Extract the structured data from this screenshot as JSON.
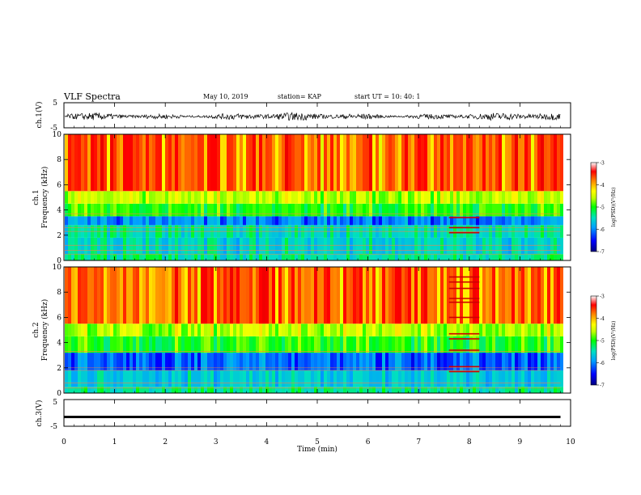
{
  "header": {
    "title": "VLF Spectra",
    "date": "May 10, 2019",
    "station": "station= KAP",
    "start": "start  UT =   10: 40: 1"
  },
  "colors": {
    "spectrogram_scale": [
      "#000080",
      "#0000ff",
      "#00a0ff",
      "#00e0c0",
      "#00ff00",
      "#c0ff00",
      "#ffff00",
      "#ff8000",
      "#ff0000",
      "#e00000"
    ],
    "waveform": "#000000"
  },
  "chart_data": [
    {
      "type": "line",
      "name": "ch1-waveform",
      "ylabel": "ch.1(V)",
      "ylim": [
        -5,
        5
      ],
      "y_ticks": [
        "5",
        "-5"
      ],
      "xlim": [
        0,
        10
      ],
      "approx_level_V": -0.5,
      "approx_amplitude_V": 1.6
    },
    {
      "type": "heatmap",
      "name": "ch1-spectrogram",
      "ylabel": "ch.1\nFrequency (kHz)",
      "ylim": [
        0,
        10
      ],
      "y_ticks": [
        "0",
        "2",
        "4",
        "6",
        "8",
        "10"
      ],
      "xlim": [
        0,
        10
      ],
      "data_end_min": 9.8,
      "colorbar": {
        "label": "log(PSD)(V²/Hz)",
        "range": [
          -7,
          -3
        ],
        "ticks": [
          "-3",
          "-4",
          "-5",
          "-6",
          "-7"
        ]
      },
      "band_levels_log_psd": [
        {
          "f": [
            0.0,
            0.5
          ],
          "v": -5.4
        },
        {
          "f": [
            0.5,
            1.8
          ],
          "v": -5.6
        },
        {
          "f": [
            1.8,
            2.8
          ],
          "v": -5.5
        },
        {
          "f": [
            2.8,
            3.5
          ],
          "v": -6.1
        },
        {
          "f": [
            3.5,
            4.5
          ],
          "v": -5.0
        },
        {
          "f": [
            4.5,
            5.5
          ],
          "v": -4.6
        },
        {
          "f": [
            5.5,
            10.0
          ],
          "v": -3.8
        }
      ],
      "line_frequencies_kHz": [
        0.5,
        0.8,
        1.2,
        2.3,
        2.6,
        3.7,
        5.5
      ],
      "transmitter_window_min": [
        7.6,
        8.2
      ],
      "transmitter_window_lines_kHz": [
        2.2,
        2.6,
        3.4
      ]
    },
    {
      "type": "heatmap",
      "name": "ch2-spectrogram",
      "ylabel": "ch.2\nFrequency (kHz)",
      "ylim": [
        0,
        10
      ],
      "y_ticks": [
        "0",
        "2",
        "4",
        "6",
        "8",
        "10"
      ],
      "xlim": [
        0,
        10
      ],
      "data_end_min": 9.8,
      "colorbar": {
        "label": "log(PSD)(V²/Hz)",
        "range": [
          -7,
          -3
        ],
        "ticks": [
          "-3",
          "-4",
          "-5",
          "-6",
          "-7"
        ]
      },
      "band_levels_log_psd": [
        {
          "f": [
            0.0,
            0.5
          ],
          "v": -5.4
        },
        {
          "f": [
            0.5,
            1.8
          ],
          "v": -5.7
        },
        {
          "f": [
            1.8,
            3.2
          ],
          "v": -6.2
        },
        {
          "f": [
            3.2,
            4.5
          ],
          "v": -5.0
        },
        {
          "f": [
            4.5,
            5.5
          ],
          "v": -4.6
        },
        {
          "f": [
            5.5,
            10.0
          ],
          "v": -3.8
        }
      ],
      "line_frequencies_kHz": [
        0.4,
        0.8,
        1.8,
        2.0,
        3.3
      ],
      "transmitter_window_min": [
        7.6,
        8.2
      ],
      "transmitter_window_lines_kHz": [
        1.7,
        2.1,
        3.4,
        4.3,
        4.7,
        6.0,
        7.2,
        7.5,
        8.3,
        8.8,
        9.2
      ]
    },
    {
      "type": "line",
      "name": "ch3-waveform",
      "ylabel": "ch.3(V)",
      "ylim": [
        -5,
        5
      ],
      "y_ticks": [
        "5",
        "-5"
      ],
      "xlim": [
        0,
        10
      ],
      "x_ticks": [
        "0",
        "1",
        "2",
        "3",
        "4",
        "5",
        "6",
        "7",
        "8",
        "9",
        "10"
      ],
      "xlabel": "Time (min)",
      "approx_level_V": -1.5,
      "approx_amplitude_V": 0.1
    }
  ]
}
